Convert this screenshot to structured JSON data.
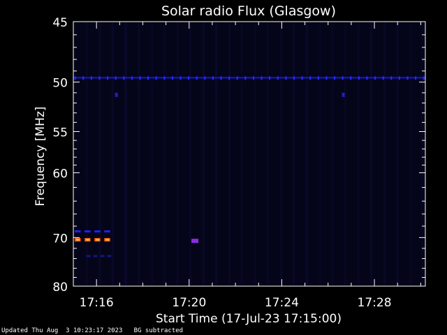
{
  "chart_data": {
    "type": "heatmap",
    "title": "Solar radio Flux (Glasgow)",
    "xlabel": "Start Time (17-Jul-23 17:15:00)",
    "ylabel": "Frequency [MHz]",
    "x_unit": "minutes after 17:15:00",
    "xlim": [
      0,
      15.2
    ],
    "ylim": [
      45,
      80
    ],
    "y_ticks": [
      45,
      50,
      55,
      60,
      70,
      80
    ],
    "y_tick_labels": [
      "45",
      "50",
      "55",
      "60",
      "70",
      "80"
    ],
    "x_ticks": [
      1,
      5,
      9,
      13
    ],
    "x_tick_labels": [
      "17:16",
      "17:20",
      "17:24",
      "17:28"
    ],
    "background_color": "#05051a",
    "features": [
      {
        "name": "persistent line",
        "freq_mhz": 49.6,
        "t_start": 0,
        "t_end": 15.2,
        "color": "#1a1aff",
        "intensity": "medium"
      },
      {
        "name": "emission burst",
        "freq_mhz": 70.4,
        "t_start": 0,
        "t_end": 1.7,
        "color": "#ff5a00",
        "intensity": "high"
      },
      {
        "name": "emission line",
        "freq_mhz": 68.9,
        "t_start": 0,
        "t_end": 1.7,
        "color": "#2020ff",
        "intensity": "medium"
      },
      {
        "name": "weak line",
        "freq_mhz": 73.5,
        "t_start": 0.5,
        "t_end": 1.7,
        "color": "#151580",
        "intensity": "low"
      },
      {
        "name": "spot",
        "freq_mhz": 70.6,
        "t_start": 5.1,
        "t_end": 5.4,
        "color": "#8a2be2",
        "intensity": "medium"
      },
      {
        "name": "spot",
        "freq_mhz": 51.2,
        "t_start": 1.8,
        "t_end": 1.9,
        "color": "#2020c0",
        "intensity": "low"
      },
      {
        "name": "spot",
        "freq_mhz": 51.2,
        "t_start": 11.6,
        "t_end": 11.7,
        "color": "#2020c0",
        "intensity": "low"
      }
    ]
  },
  "footer": {
    "updated": "Updated Thu Aug  3 10:23:17 2023",
    "bg_note": "BG subtracted"
  }
}
